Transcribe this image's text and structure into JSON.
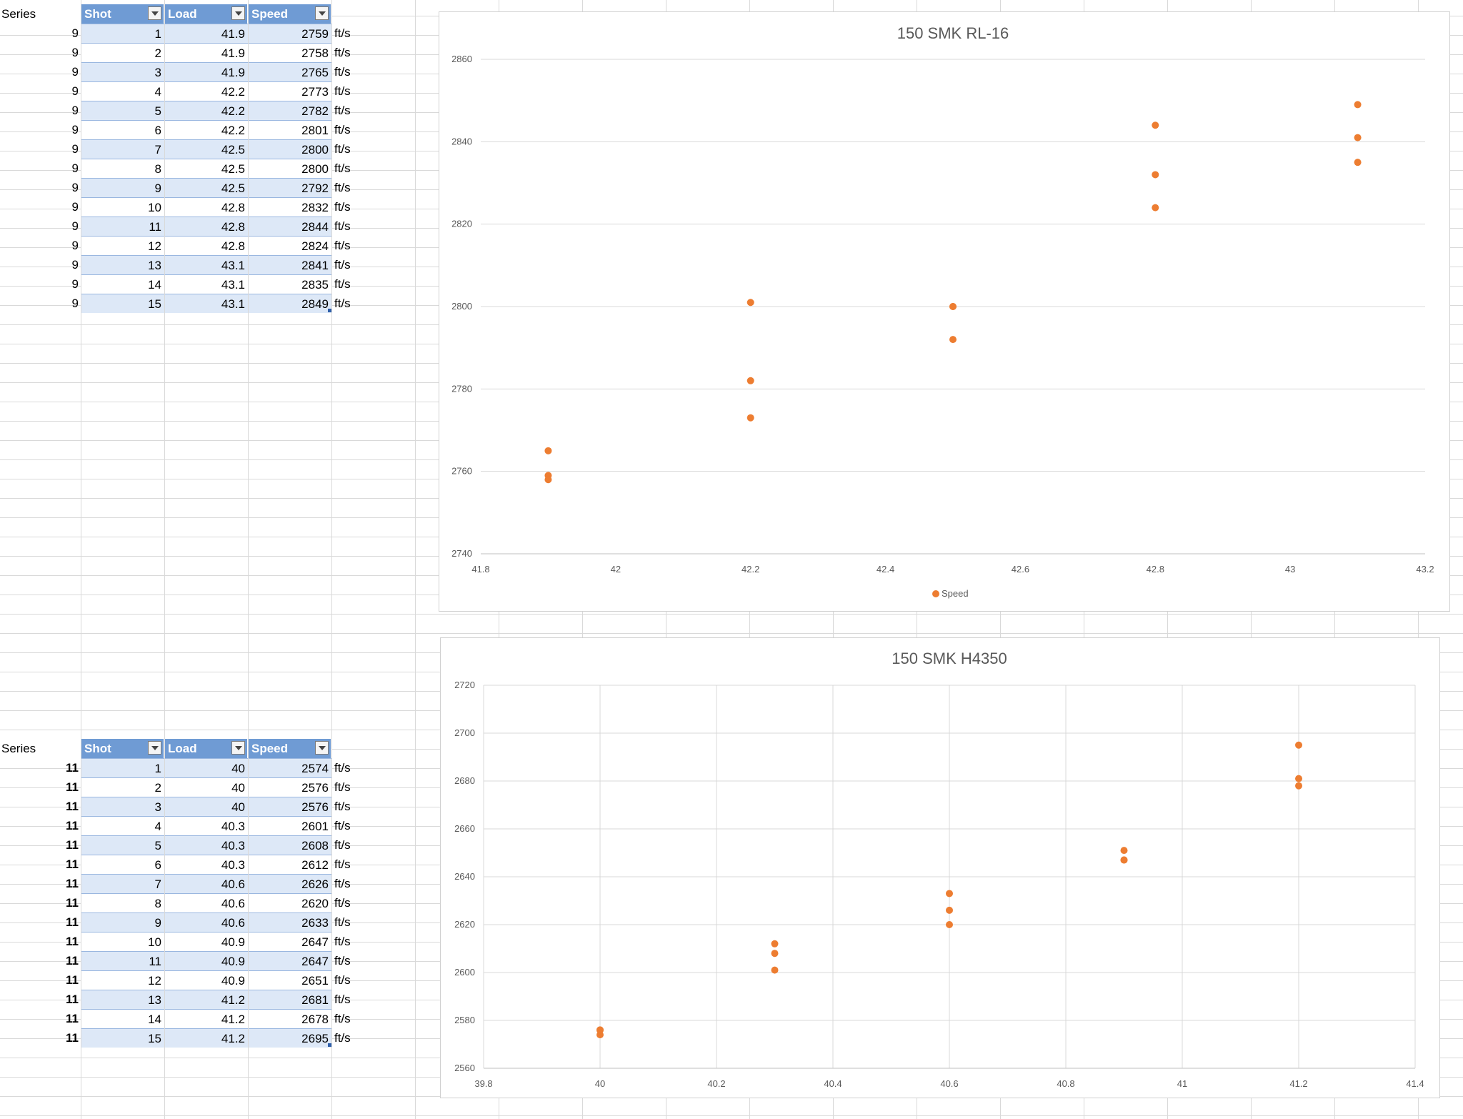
{
  "colors": {
    "marker": "#ED7D31",
    "header_fill": "#6F9BD4",
    "band_fill": "#DDE8F7",
    "gridline": "#D9D9D9"
  },
  "table1": {
    "series_header": "Series",
    "headers": [
      "Shot",
      "Load",
      "Speed"
    ],
    "rows": [
      {
        "series": "9",
        "shot": "1",
        "load": "41.9",
        "speed": "2759",
        "unit": "ft/s"
      },
      {
        "series": "9",
        "shot": "2",
        "load": "41.9",
        "speed": "2758",
        "unit": "ft/s"
      },
      {
        "series": "9",
        "shot": "3",
        "load": "41.9",
        "speed": "2765",
        "unit": "ft/s"
      },
      {
        "series": "9",
        "shot": "4",
        "load": "42.2",
        "speed": "2773",
        "unit": "ft/s"
      },
      {
        "series": "9",
        "shot": "5",
        "load": "42.2",
        "speed": "2782",
        "unit": "ft/s"
      },
      {
        "series": "9",
        "shot": "6",
        "load": "42.2",
        "speed": "2801",
        "unit": "ft/s"
      },
      {
        "series": "9",
        "shot": "7",
        "load": "42.5",
        "speed": "2800",
        "unit": "ft/s"
      },
      {
        "series": "9",
        "shot": "8",
        "load": "42.5",
        "speed": "2800",
        "unit": "ft/s"
      },
      {
        "series": "9",
        "shot": "9",
        "load": "42.5",
        "speed": "2792",
        "unit": "ft/s"
      },
      {
        "series": "9",
        "shot": "10",
        "load": "42.8",
        "speed": "2832",
        "unit": "ft/s"
      },
      {
        "series": "9",
        "shot": "11",
        "load": "42.8",
        "speed": "2844",
        "unit": "ft/s"
      },
      {
        "series": "9",
        "shot": "12",
        "load": "42.8",
        "speed": "2824",
        "unit": "ft/s"
      },
      {
        "series": "9",
        "shot": "13",
        "load": "43.1",
        "speed": "2841",
        "unit": "ft/s"
      },
      {
        "series": "9",
        "shot": "14",
        "load": "43.1",
        "speed": "2835",
        "unit": "ft/s"
      },
      {
        "series": "9",
        "shot": "15",
        "load": "43.1",
        "speed": "2849",
        "unit": "ft/s"
      }
    ]
  },
  "table2": {
    "series_header": "Series",
    "headers": [
      "Shot",
      "Load",
      "Speed"
    ],
    "rows": [
      {
        "series": "11",
        "shot": "1",
        "load": "40",
        "speed": "2574",
        "unit": "ft/s"
      },
      {
        "series": "11",
        "shot": "2",
        "load": "40",
        "speed": "2576",
        "unit": "ft/s"
      },
      {
        "series": "11",
        "shot": "3",
        "load": "40",
        "speed": "2576",
        "unit": "ft/s"
      },
      {
        "series": "11",
        "shot": "4",
        "load": "40.3",
        "speed": "2601",
        "unit": "ft/s"
      },
      {
        "series": "11",
        "shot": "5",
        "load": "40.3",
        "speed": "2608",
        "unit": "ft/s"
      },
      {
        "series": "11",
        "shot": "6",
        "load": "40.3",
        "speed": "2612",
        "unit": "ft/s"
      },
      {
        "series": "11",
        "shot": "7",
        "load": "40.6",
        "speed": "2626",
        "unit": "ft/s"
      },
      {
        "series": "11",
        "shot": "8",
        "load": "40.6",
        "speed": "2620",
        "unit": "ft/s"
      },
      {
        "series": "11",
        "shot": "9",
        "load": "40.6",
        "speed": "2633",
        "unit": "ft/s"
      },
      {
        "series": "11",
        "shot": "10",
        "load": "40.9",
        "speed": "2647",
        "unit": "ft/s"
      },
      {
        "series": "11",
        "shot": "11",
        "load": "40.9",
        "speed": "2647",
        "unit": "ft/s"
      },
      {
        "series": "11",
        "shot": "12",
        "load": "40.9",
        "speed": "2651",
        "unit": "ft/s"
      },
      {
        "series": "11",
        "shot": "13",
        "load": "41.2",
        "speed": "2681",
        "unit": "ft/s"
      },
      {
        "series": "11",
        "shot": "14",
        "load": "41.2",
        "speed": "2678",
        "unit": "ft/s"
      },
      {
        "series": "11",
        "shot": "15",
        "load": "41.2",
        "speed": "2695",
        "unit": "ft/s"
      }
    ]
  },
  "chart_data": [
    {
      "type": "scatter",
      "title": "150 SMK RL-16",
      "xlabel": "",
      "ylabel": "",
      "xlim": [
        41.8,
        43.2
      ],
      "ylim": [
        2740,
        2860
      ],
      "xticks": [
        "41.8",
        "42",
        "42.2",
        "42.4",
        "42.6",
        "42.8",
        "43",
        "43.2"
      ],
      "yticks": [
        "2740",
        "2760",
        "2780",
        "2800",
        "2820",
        "2840",
        "2860"
      ],
      "grid": "horizontal",
      "legend": "bottom",
      "series": [
        {
          "name": "Speed",
          "color": "#ED7D31",
          "x": [
            41.9,
            41.9,
            41.9,
            42.2,
            42.2,
            42.2,
            42.5,
            42.5,
            42.5,
            42.8,
            42.8,
            42.8,
            43.1,
            43.1,
            43.1
          ],
          "y": [
            2759,
            2758,
            2765,
            2773,
            2782,
            2801,
            2800,
            2800,
            2792,
            2832,
            2844,
            2824,
            2841,
            2835,
            2849
          ]
        }
      ]
    },
    {
      "type": "scatter",
      "title": "150 SMK H4350",
      "xlabel": "",
      "ylabel": "",
      "xlim": [
        39.8,
        41.4
      ],
      "ylim": [
        2560,
        2720
      ],
      "xticks": [
        "39.8",
        "40",
        "40.2",
        "40.4",
        "40.6",
        "40.8",
        "41",
        "41.2",
        "41.4"
      ],
      "yticks": [
        "2560",
        "2580",
        "2600",
        "2620",
        "2640",
        "2660",
        "2680",
        "2700",
        "2720"
      ],
      "grid": "both",
      "legend": "none",
      "series": [
        {
          "color": "#ED7D31",
          "x": [
            40,
            40,
            40,
            40.3,
            40.3,
            40.3,
            40.6,
            40.6,
            40.6,
            40.9,
            40.9,
            40.9,
            41.2,
            41.2,
            41.2
          ],
          "y": [
            2574,
            2576,
            2576,
            2601,
            2608,
            2612,
            2626,
            2620,
            2633,
            2647,
            2647,
            2651,
            2681,
            2678,
            2695
          ]
        }
      ]
    }
  ]
}
